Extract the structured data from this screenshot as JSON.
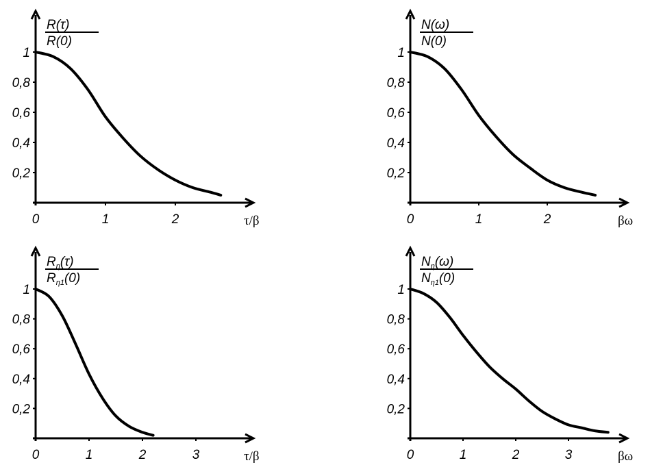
{
  "chart_data": [
    {
      "type": "line",
      "title": "",
      "ylabel": {
        "num": "R(τ)",
        "den": "R(0)"
      },
      "xlabel": "τ/β",
      "xticks": [
        "0",
        "1",
        "2"
      ],
      "yticks": [
        "0,2",
        "0,4",
        "0,6",
        "0,8",
        "1"
      ],
      "ylim": [
        0,
        1.1
      ],
      "xlim": [
        0,
        3.2
      ],
      "grid": false,
      "series": [
        {
          "name": "R(τ)/R(0)",
          "x": [
            0,
            0.25,
            0.5,
            0.75,
            1,
            1.25,
            1.5,
            1.75,
            2,
            2.25,
            2.5,
            2.65
          ],
          "y": [
            1,
            0.97,
            0.89,
            0.75,
            0.57,
            0.43,
            0.31,
            0.22,
            0.15,
            0.1,
            0.07,
            0.05
          ]
        }
      ]
    },
    {
      "type": "line",
      "title": "",
      "ylabel": {
        "num": "N(ω)",
        "den": "N(0)"
      },
      "xlabel": "βω",
      "xticks": [
        "0",
        "1",
        "2"
      ],
      "yticks": [
        "0,2",
        "0,4",
        "0,6",
        "0,8",
        "1"
      ],
      "ylim": [
        0,
        1.1
      ],
      "xlim": [
        0,
        3.2
      ],
      "grid": false,
      "series": [
        {
          "name": "N(ω)/N(0)",
          "x": [
            0,
            0.25,
            0.5,
            0.75,
            1,
            1.25,
            1.5,
            1.75,
            2,
            2.25,
            2.5,
            2.7
          ],
          "y": [
            1,
            0.97,
            0.89,
            0.75,
            0.58,
            0.44,
            0.32,
            0.23,
            0.15,
            0.1,
            0.07,
            0.05
          ]
        }
      ]
    },
    {
      "type": "line",
      "title": "",
      "ylabel": {
        "num": "R",
        "num_sub": "η",
        "num_rest": "(τ)",
        "den": "R",
        "den_sub": "η1",
        "den_rest": "(0)"
      },
      "xlabel": "τ/β",
      "xticks": [
        "0",
        "1",
        "2",
        "3"
      ],
      "yticks": [
        "0,2",
        "0,4",
        "0,6",
        "0,8",
        "1"
      ],
      "ylim": [
        0,
        1.1
      ],
      "xlim": [
        0,
        4.1
      ],
      "grid": false,
      "series": [
        {
          "name": "Rη(τ)/Rη1(0)",
          "x": [
            0,
            0.25,
            0.5,
            0.75,
            1,
            1.25,
            1.5,
            1.75,
            2,
            2.2
          ],
          "y": [
            1,
            0.95,
            0.82,
            0.63,
            0.43,
            0.27,
            0.15,
            0.08,
            0.04,
            0.02
          ]
        }
      ]
    },
    {
      "type": "line",
      "title": "",
      "ylabel": {
        "num": "N",
        "num_sub": "η",
        "num_rest": "(ω)",
        "den": "N",
        "den_sub": "η1",
        "den_rest": "(0)"
      },
      "xlabel": "βω",
      "xticks": [
        "0",
        "1",
        "2",
        "3"
      ],
      "yticks": [
        "0,2",
        "0,4",
        "0,6",
        "0,8",
        "1"
      ],
      "ylim": [
        0,
        1.1
      ],
      "xlim": [
        0,
        4.1
      ],
      "grid": false,
      "series": [
        {
          "name": "Nη(ω)/Nη1(0)",
          "x": [
            0,
            0.25,
            0.5,
            0.75,
            1,
            1.25,
            1.5,
            1.75,
            2,
            2.25,
            2.5,
            2.75,
            3,
            3.25,
            3.5,
            3.75
          ],
          "y": [
            1,
            0.97,
            0.91,
            0.81,
            0.69,
            0.58,
            0.48,
            0.4,
            0.33,
            0.25,
            0.18,
            0.13,
            0.09,
            0.07,
            0.05,
            0.04
          ]
        }
      ]
    }
  ]
}
